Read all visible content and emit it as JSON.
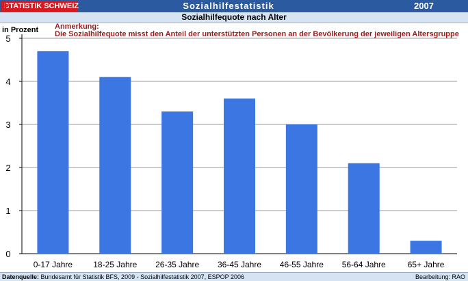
{
  "header": {
    "logo_text": "STATISTIK SCHWEIZ",
    "title": "Sozialhilfestatistik",
    "year": "2007"
  },
  "chart_data": {
    "type": "bar",
    "title": "Sozialhilfequote nach Alter",
    "ylabel": "in Prozent",
    "note_title": "Anmerkung:",
    "note_text": "Die Sozialhilfequote misst den Anteil der unterstützten Personen an der Bevölkerung der jeweiligen Altersgruppe",
    "categories": [
      "0-17 Jahre",
      "18-25 Jahre",
      "26-35 Jahre",
      "36-45 Jahre",
      "46-55 Jahre",
      "56-64 Jahre",
      "65+ Jahre"
    ],
    "values": [
      4.7,
      4.1,
      3.3,
      3.6,
      3.0,
      2.1,
      0.3
    ],
    "ylim": [
      0,
      5
    ],
    "yticks": [
      0,
      1,
      2,
      3,
      4,
      5
    ],
    "grid": true,
    "bar_color": "#3b76e3"
  },
  "footer": {
    "source_label": "Datenquelle:",
    "source_text": " Bundesamt für Statistik BFS, 2009 - Sozialhilfestatistik 2007, ESPOP 2006",
    "editor": "Bearbeitung: RAO"
  }
}
